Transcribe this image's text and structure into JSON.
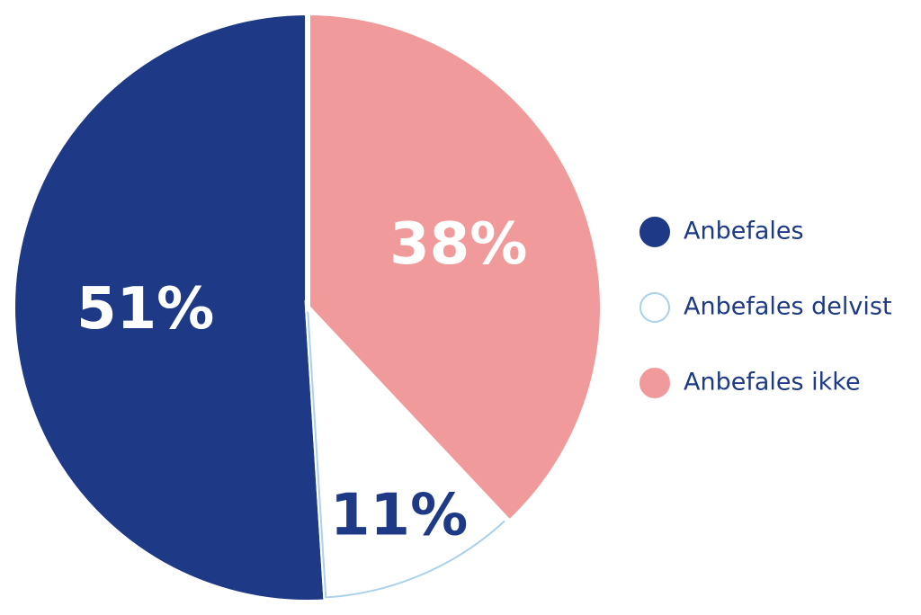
{
  "chart_data": {
    "type": "pie",
    "categories": [
      "Anbefales",
      "Anbefales delvist",
      "Anbefales ikke"
    ],
    "values": [
      51,
      11,
      38
    ],
    "value_labels": [
      "51%",
      "11%",
      "38%"
    ],
    "colors": [
      "#1e3a87",
      "#ffffff",
      "#f19a9b"
    ],
    "legend": "right"
  }
}
